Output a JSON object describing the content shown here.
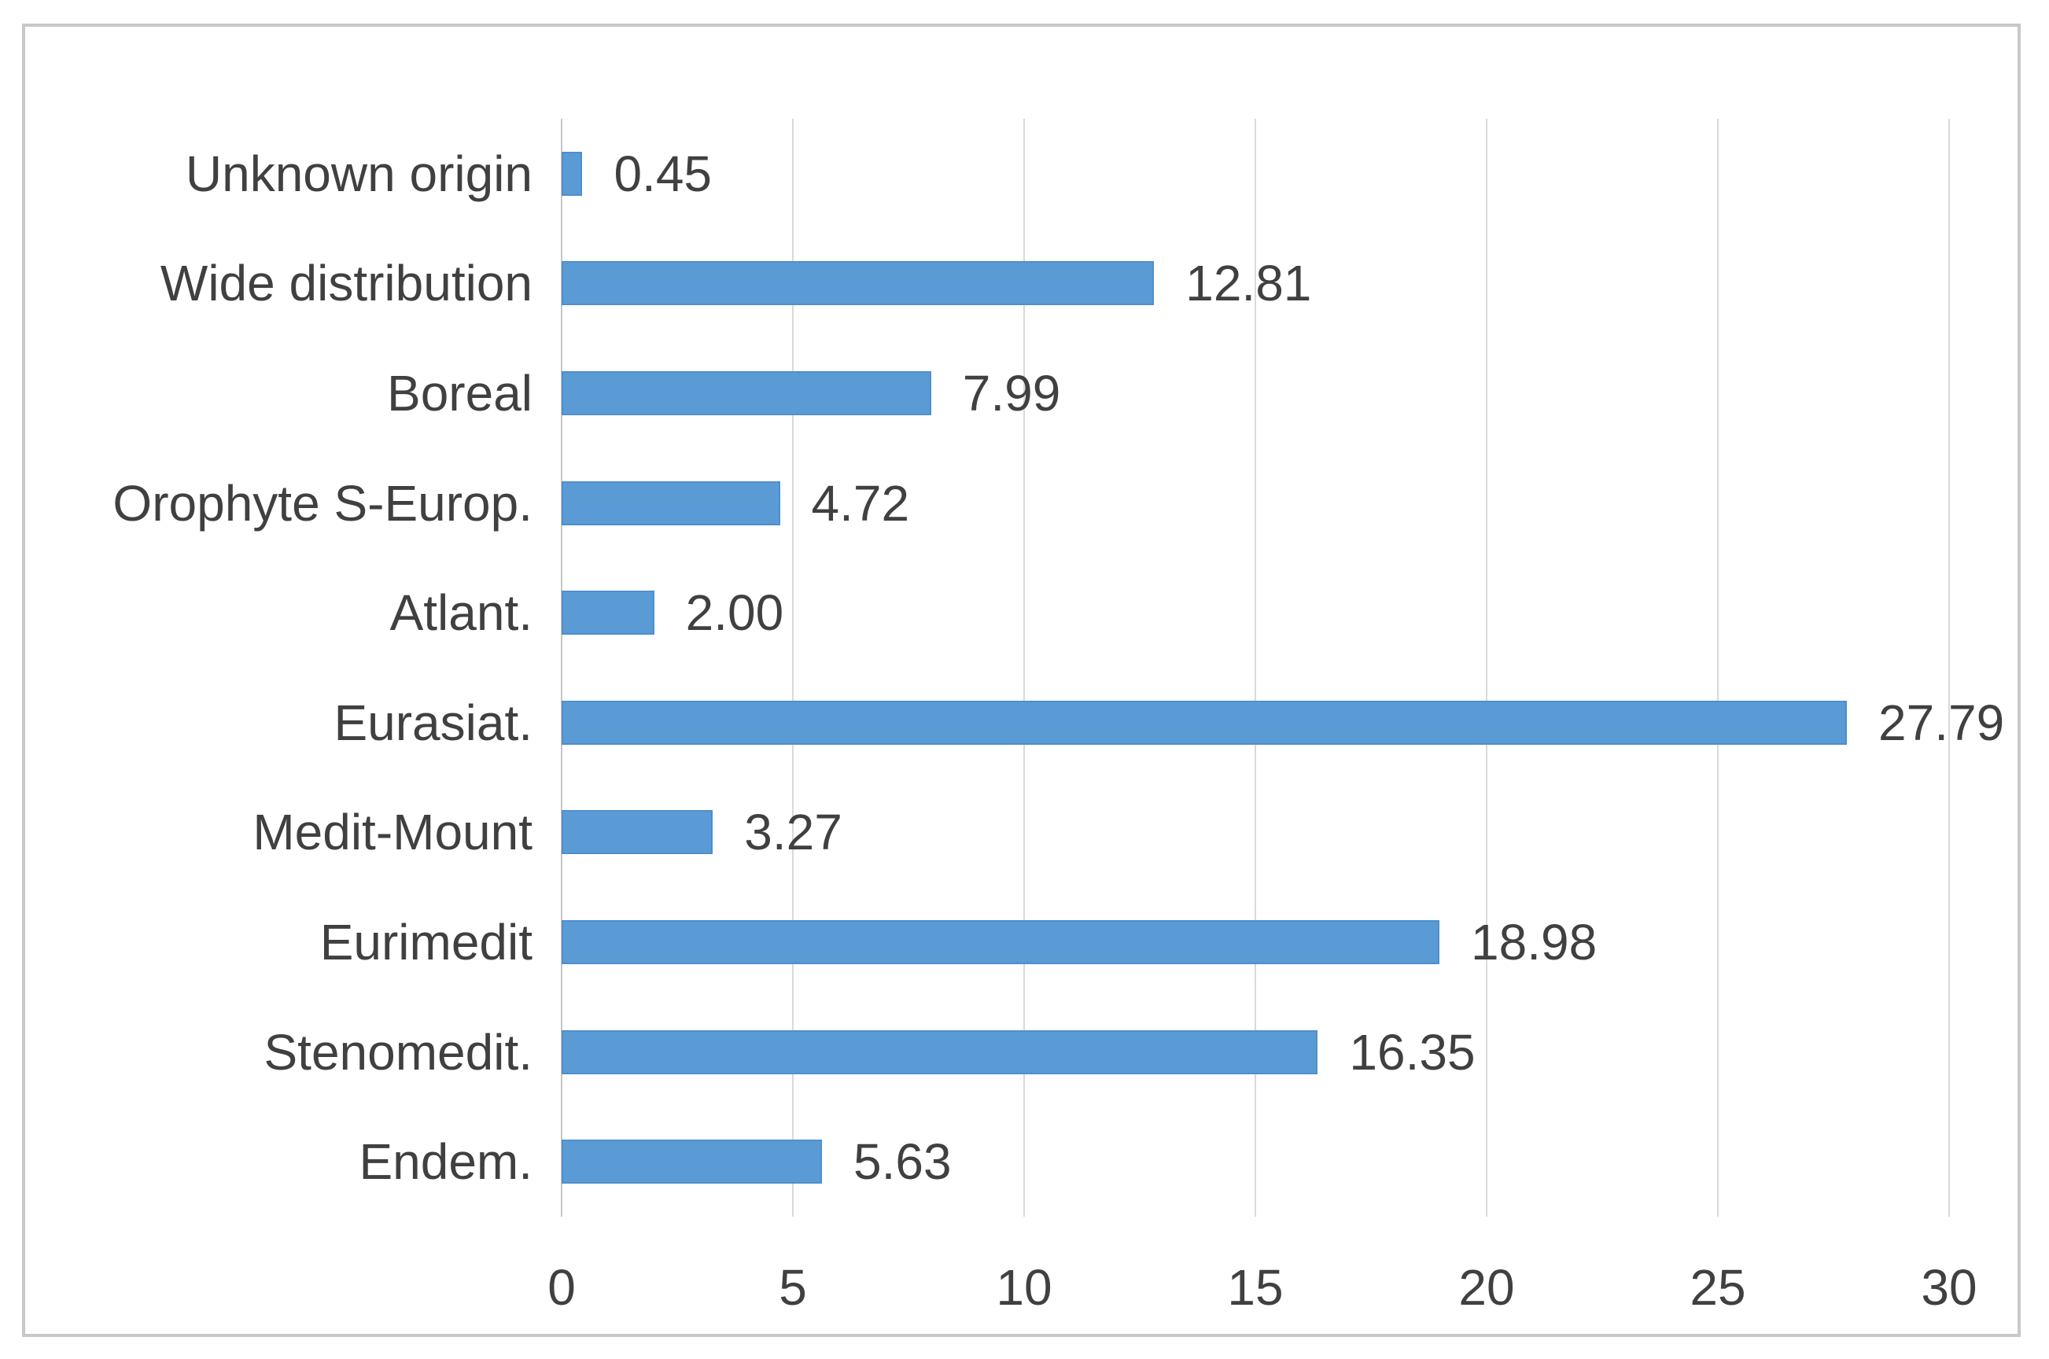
{
  "chart_data": {
    "type": "bar",
    "orientation": "horizontal",
    "title": "",
    "categories": [
      "Unknown origin",
      "Wide distribution",
      "Boreal",
      "Orophyte S-Europ.",
      "Atlant.",
      "Eurasiat.",
      "Medit-Mount",
      "Eurimedit",
      "Stenomedit.",
      "Endem."
    ],
    "values": [
      0.45,
      12.81,
      7.99,
      4.72,
      2.0,
      27.79,
      3.27,
      18.98,
      16.35,
      5.63
    ],
    "value_labels": [
      "0.45",
      "12.81",
      "7.99",
      "4.72",
      "2.00",
      "27.79",
      "3.27",
      "18.98",
      "16.35",
      "5.63"
    ],
    "x_ticks": [
      0,
      5,
      10,
      15,
      20,
      25,
      30
    ],
    "x_tick_labels": [
      "0",
      "5",
      "10",
      "15",
      "20",
      "25",
      "30"
    ],
    "xlim": [
      0,
      30
    ],
    "grid": "vertical-gridlines-on",
    "legend": "none",
    "colors": {
      "bar_fill": "#5B9BD5",
      "bar_border": "#4E8FCC",
      "gridline": "#D9D9D9",
      "axis_line": "#C6C6C6",
      "text": "#404040",
      "frame_border": "#C8C8C8"
    }
  }
}
